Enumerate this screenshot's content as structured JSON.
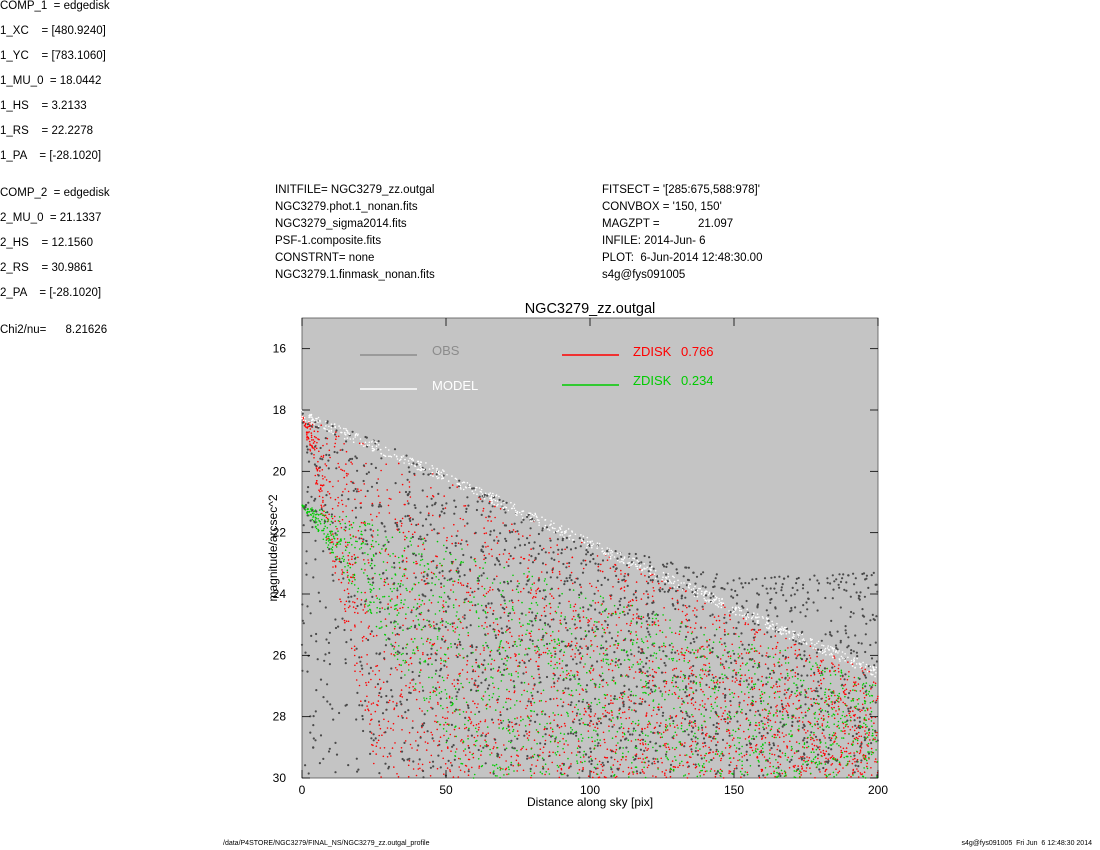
{
  "header_left": [
    "INITFILE= NGC3279_zz.outgal",
    "NGC3279.phot.1_nonan.fits",
    "NGC3279_sigma2014.fits",
    "PSF-1.composite.fits",
    "CONSTRNT= none",
    "NGC3279.1.finmask_nonan.fits"
  ],
  "header_mid": [
    "FITSECT = '[285:675,588:978]'",
    "CONVBOX = '150, 150'",
    "MAGZPT =            21.097",
    "INFILE: 2014-Jun- 6",
    "PLOT:  6-Jun-2014 12:48:30.00",
    "s4g@fys091005"
  ],
  "params": {
    "comp1": [
      "COMP_1  = edgedisk",
      "1_XC    = [480.9240]",
      "1_YC    = [783.1060]",
      "1_MU_0  = 18.0442",
      "1_HS    = 3.2133",
      "1_RS    = 22.2278",
      "1_PA    = [-28.1020]"
    ],
    "comp2": [
      "COMP_2  = edgedisk",
      "2_MU_0  = 21.1337",
      "2_HS    = 12.1560",
      "2_RS    = 30.9861",
      "2_PA    = [-28.1020]"
    ],
    "chi": "Chi2/nu=      8.21626"
  },
  "footer_left": "/data/P4STORE/NGC3279/FINAL_NS/NGC3279_zz.outgal_profile",
  "footer_right": "s4g@fys091005  Fri Jun  6 12:48:30 2014",
  "colors": {
    "plot_bg": "#c4c4c4",
    "obs": "#4a4a4a",
    "model": "#ffffff",
    "zdisk1": "#ff0000",
    "zdisk2": "#00cc00",
    "obs_legend": "#8c8c8c"
  },
  "chart_data": {
    "type": "scatter",
    "title": "NGC3279_zz.outgal",
    "xlabel": "Distance along sky [pix]",
    "ylabel": "magnitude/arcsec^2",
    "xlim": [
      0,
      200
    ],
    "ylim": [
      30,
      15
    ],
    "xticks": [
      0,
      50,
      100,
      150,
      200
    ],
    "yticks": [
      16,
      18,
      20,
      22,
      24,
      26,
      28,
      30
    ],
    "grid": false,
    "legend": [
      {
        "label": "OBS",
        "value": ""
      },
      {
        "label": "MODEL",
        "value": ""
      },
      {
        "label": "ZDISK",
        "value": "0.766"
      },
      {
        "label": "ZDISK",
        "value": "0.234"
      }
    ],
    "series": [
      {
        "name": "ZDISK",
        "component": 1,
        "mu0": 18.0442,
        "hs": 3.2133,
        "rs": 22.2278,
        "upper_envelope": {
          "x": [
            0,
            50,
            100,
            150,
            200
          ],
          "y": [
            18.2,
            20.2,
            22.4,
            24.5,
            26.6
          ]
        }
      },
      {
        "name": "ZDISK",
        "component": 2,
        "mu0": 21.1337,
        "hs": 12.156,
        "rs": 30.9861,
        "upper_envelope": {
          "x": [
            0,
            50,
            100,
            150,
            200
          ],
          "y": [
            21.1,
            22.3,
            23.9,
            25.3,
            26.8
          ]
        }
      },
      {
        "name": "OBS",
        "upper_envelope": {
          "x": [
            0,
            20,
            50,
            100,
            150,
            200
          ],
          "y": [
            18.0,
            18.7,
            20.1,
            22.3,
            23.5,
            23.3
          ]
        }
      },
      {
        "name": "MODEL",
        "upper_envelope": {
          "x": [
            0,
            50,
            100,
            150,
            200
          ],
          "y": [
            18.0,
            20.0,
            22.2,
            24.3,
            26.4
          ]
        }
      }
    ]
  }
}
